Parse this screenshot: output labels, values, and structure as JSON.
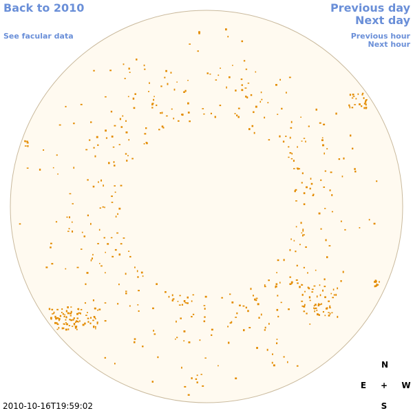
{
  "navigation": {
    "back": "Back to 2010",
    "facular": "See facular data",
    "previous_day": "Previous day",
    "next_day": "Next day",
    "previous_hour": "Previous hour",
    "next_hour": "Next hour"
  },
  "timestamp": "2010-10-16T19:59:02",
  "compass": {
    "north": "N",
    "east": "E",
    "center": "+",
    "west": "W",
    "south": "S"
  }
}
